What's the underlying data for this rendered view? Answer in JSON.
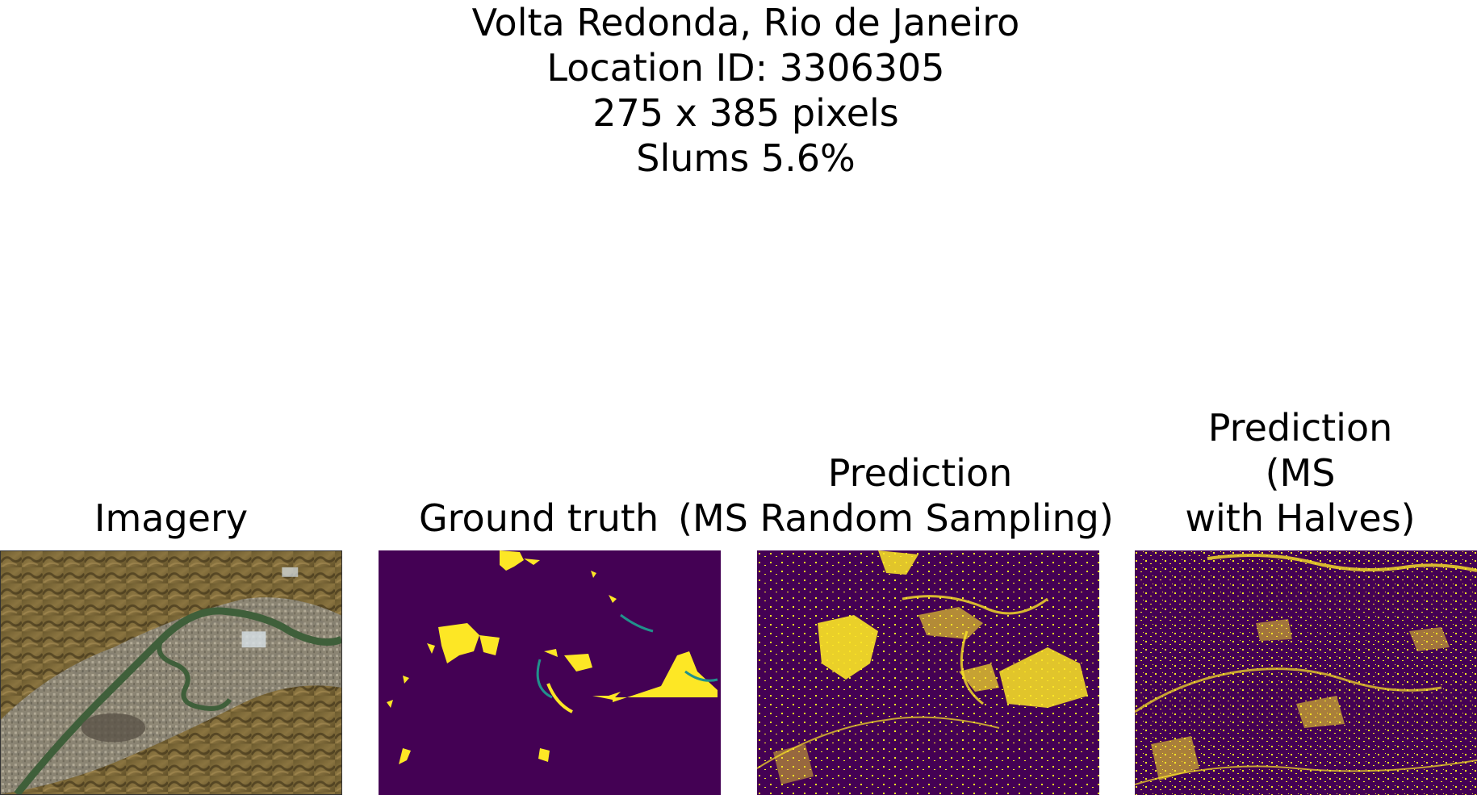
{
  "header": {
    "line1": "Volta Redonda, Rio de Janeiro",
    "line2": "Location ID: 3306305",
    "line3": "275 x 385 pixels",
    "line4": "Slums 5.6%"
  },
  "panels": {
    "imagery": {
      "title": "Imagery"
    },
    "ground_truth": {
      "title": "Ground truth"
    },
    "pred_random": {
      "title_line1": "Prediction",
      "title_line2": "(MS Random Sampling)"
    },
    "pred_halves": {
      "title_line1": "Prediction",
      "title_line2": "(MS",
      "title_line3": "with Halves)"
    }
  },
  "colors": {
    "mask_background": "#440154",
    "mask_foreground": "#fde725",
    "mask_edge": "#21918c"
  }
}
